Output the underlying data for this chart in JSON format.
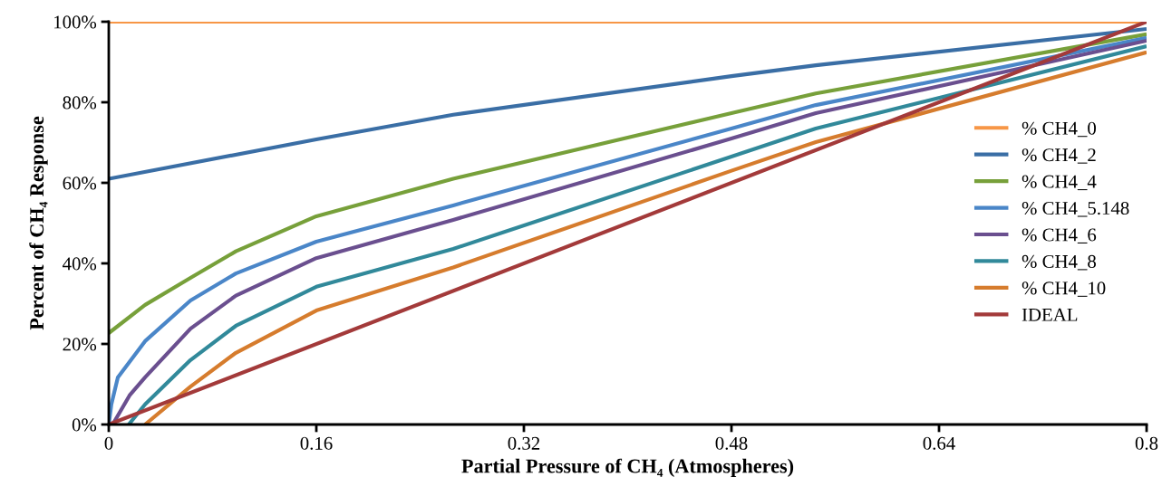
{
  "chart_data": {
    "type": "line",
    "xlabel": "Partial Pressure of CH₄ (Atmospheres)",
    "ylabel": "Percent of CH₄ Response",
    "xlim": [
      0,
      0.8
    ],
    "xticks": [
      0,
      0.16,
      0.32,
      0.48,
      0.64,
      0.8
    ],
    "ylim": [
      0,
      100
    ],
    "yticks": [
      {
        "value": 0,
        "label": "0%"
      },
      {
        "value": 20,
        "label": "20%"
      },
      {
        "value": 40,
        "label": "40%"
      },
      {
        "value": 60,
        "label": "60%"
      },
      {
        "value": 80,
        "label": "80%"
      },
      {
        "value": 100,
        "label": "100%"
      }
    ],
    "grid": false,
    "legend": "right",
    "marker": "none",
    "line_style": "solid",
    "series": [
      {
        "name": "% CH4_0",
        "color": "#f79646",
        "x": [
          0,
          0.8
        ],
        "values": [
          100,
          100
        ]
      },
      {
        "name": "% CH4_2",
        "color": "#3a6ea5",
        "x": [
          0,
          0.16,
          0.2655,
          0.48,
          0.545,
          0.8
        ],
        "values": [
          61,
          70.8,
          76.9,
          86.5,
          89.2,
          98.2
        ]
      },
      {
        "name": "% CH4_4",
        "color": "#77a03a",
        "x": [
          0,
          0.028,
          0.063,
          0.098,
          0.16,
          0.2655,
          0.48,
          0.545,
          0.8
        ],
        "values": [
          22.7,
          29.7,
          36.4,
          43,
          51.7,
          61,
          77.3,
          82.2,
          96.9
        ]
      },
      {
        "name": "% CH4_5.148",
        "color": "#4a86c8",
        "x": [
          0,
          0.002,
          0.007,
          0.028,
          0.063,
          0.098,
          0.16,
          0.2655,
          0.48,
          0.545,
          0.8
        ],
        "values": [
          0,
          5,
          11.7,
          20.7,
          30.8,
          37.5,
          45.4,
          54.4,
          73.5,
          79.3,
          96
        ]
      },
      {
        "name": "% CH4_6",
        "color": "#6a4f8f",
        "x": [
          0.003,
          0.016,
          0.028,
          0.063,
          0.098,
          0.16,
          0.2655,
          0.48,
          0.545,
          0.8
        ],
        "values": [
          0,
          7.2,
          11.7,
          23.8,
          32,
          41.3,
          50.8,
          71,
          77.3,
          95.3
        ]
      },
      {
        "name": "% CH4_8",
        "color": "#31899a",
        "x": [
          0.0154,
          0.028,
          0.063,
          0.098,
          0.16,
          0.2655,
          0.48,
          0.545,
          0.8
        ],
        "values": [
          0,
          5,
          16,
          24.5,
          34.2,
          43.6,
          66.5,
          73.5,
          93.9
        ]
      },
      {
        "name": "% CH4_10",
        "color": "#d67c2d",
        "x": [
          0.028,
          0.063,
          0.098,
          0.16,
          0.2655,
          0.48,
          0.545,
          0.8
        ],
        "values": [
          0,
          9.4,
          17.8,
          28.3,
          39,
          63,
          70.1,
          92.4
        ]
      },
      {
        "name": "IDEAL",
        "color": "#a33a3a",
        "x": [
          0,
          0.8
        ],
        "values": [
          0,
          100
        ]
      }
    ]
  }
}
